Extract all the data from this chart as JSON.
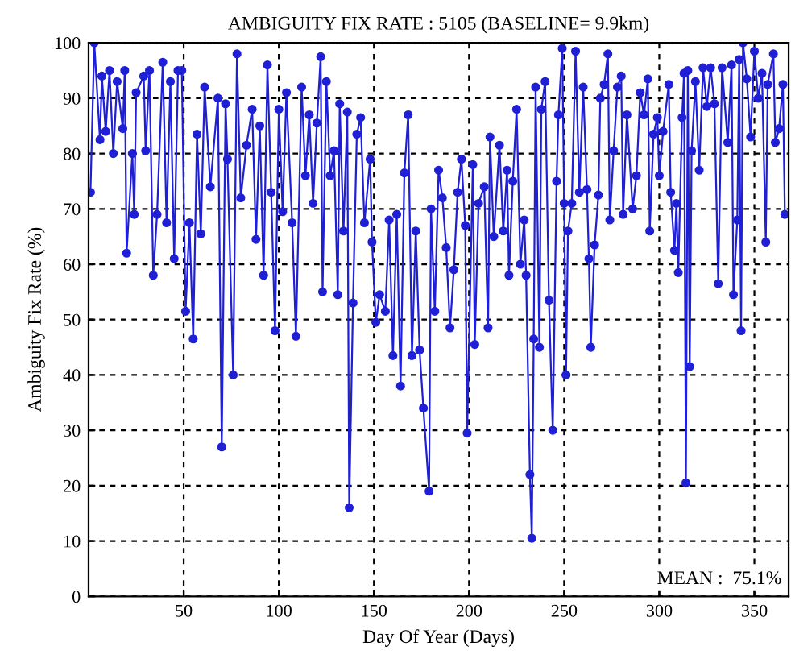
{
  "chart_data": {
    "type": "line",
    "title": "AMBIGUITY FIX RATE : 5105 (BASELINE= 9.9km)",
    "xlabel": "Day Of Year (Days)",
    "ylabel": "Ambiguity Fix Rate (%)",
    "annotations": [
      "MEAN :  75.1%"
    ],
    "series": [
      {
        "color": "#1f1fd6",
        "x": [
          1,
          3,
          6,
          7,
          9,
          11,
          13,
          15,
          18,
          19,
          20,
          23,
          24,
          25,
          29,
          30,
          32,
          34,
          36,
          39,
          41,
          43,
          45,
          47,
          49,
          51,
          53,
          55,
          57,
          59,
          61,
          64,
          68,
          70,
          72,
          73,
          76,
          78,
          80,
          83,
          86,
          88,
          90,
          92,
          94,
          96,
          98,
          100,
          102,
          104,
          107,
          109,
          112,
          114,
          116,
          118,
          120,
          122,
          123,
          125,
          127,
          129,
          131,
          132,
          134,
          136,
          137,
          139,
          141,
          143,
          145,
          148,
          149,
          151,
          153,
          156,
          158,
          160,
          162,
          164,
          166,
          168,
          170,
          172,
          174,
          176,
          179,
          180,
          182,
          184,
          186,
          188,
          190,
          192,
          194,
          196,
          198,
          199,
          202,
          203,
          205,
          208,
          210,
          211,
          213,
          216,
          218,
          220,
          221,
          223,
          225,
          227,
          229,
          230,
          232,
          233,
          234,
          235,
          237,
          238,
          240,
          242,
          244,
          246,
          247,
          249,
          250,
          251,
          252,
          254,
          256,
          258,
          260,
          262,
          263,
          264,
          266,
          268,
          269,
          271,
          273,
          274,
          276,
          278,
          280,
          281,
          283,
          286,
          288,
          290,
          292,
          294,
          295,
          297,
          299,
          300,
          302,
          305,
          306,
          308,
          309,
          310,
          312,
          313,
          314,
          315,
          316,
          317,
          319,
          321,
          323,
          325,
          327,
          329,
          331,
          333,
          336,
          338,
          339,
          341,
          342,
          343,
          344,
          346,
          348,
          350,
          352,
          354,
          356,
          357,
          360,
          361,
          363,
          365,
          366
        ],
        "values": [
          73,
          100,
          82.5,
          94,
          84,
          95,
          80,
          93,
          84.5,
          95,
          62,
          80,
          69,
          91,
          94,
          80.5,
          95,
          58,
          69,
          96.5,
          67.5,
          93,
          61,
          95,
          95,
          51.5,
          67.5,
          46.5,
          83.5,
          65.5,
          92,
          74,
          90,
          27,
          89,
          79,
          40,
          98,
          72,
          81.5,
          88,
          64.5,
          85,
          58,
          96,
          73,
          48,
          88,
          69.5,
          91,
          67.5,
          47,
          92,
          76,
          87,
          71,
          85.5,
          97.5,
          55,
          93,
          76,
          80.5,
          54.5,
          89,
          66,
          87.5,
          16,
          53,
          83.5,
          86.5,
          67.5,
          79,
          64,
          49.5,
          54.5,
          51.5,
          68,
          43.5,
          69,
          38,
          76.5,
          87,
          43.5,
          66,
          44.5,
          34,
          19,
          70,
          51.5,
          77,
          72,
          63,
          48.5,
          59,
          73,
          79,
          67,
          29.5,
          78,
          45.5,
          71,
          74,
          48.5,
          83,
          65,
          81.5,
          66,
          77,
          58,
          75,
          88,
          60,
          68,
          58,
          22,
          10.5,
          46.5,
          92,
          45,
          88,
          93,
          53.5,
          30,
          75,
          87,
          99,
          71,
          40,
          66,
          71,
          98.5,
          73,
          92,
          73.5,
          61,
          45,
          63.5,
          72.5,
          90,
          92.5,
          98,
          68,
          80.5,
          92,
          94,
          69,
          87,
          70,
          76,
          91,
          87,
          93.5,
          66,
          83.5,
          86.5,
          76,
          84,
          92.5,
          73,
          62.5,
          71,
          58.5,
          86.5,
          94.5,
          20.5,
          95,
          41.5,
          80.5,
          93,
          77,
          95.5,
          88.5,
          95.5,
          89,
          56.5,
          95.5,
          82,
          96,
          54.5,
          68,
          97,
          48,
          100,
          93.5,
          83,
          98.5,
          90,
          94.5,
          64,
          92.5,
          98,
          82,
          84.5,
          92.5,
          69
        ]
      }
    ],
    "xlim": [
      0,
      368
    ],
    "xticks": [
      50,
      100,
      150,
      200,
      250,
      300,
      350
    ],
    "ylim": [
      0,
      100
    ],
    "yticks": [
      0,
      10,
      20,
      30,
      40,
      50,
      60,
      70,
      80,
      90,
      100
    ],
    "grid": true,
    "marker": "circle",
    "line_style": "solid"
  }
}
